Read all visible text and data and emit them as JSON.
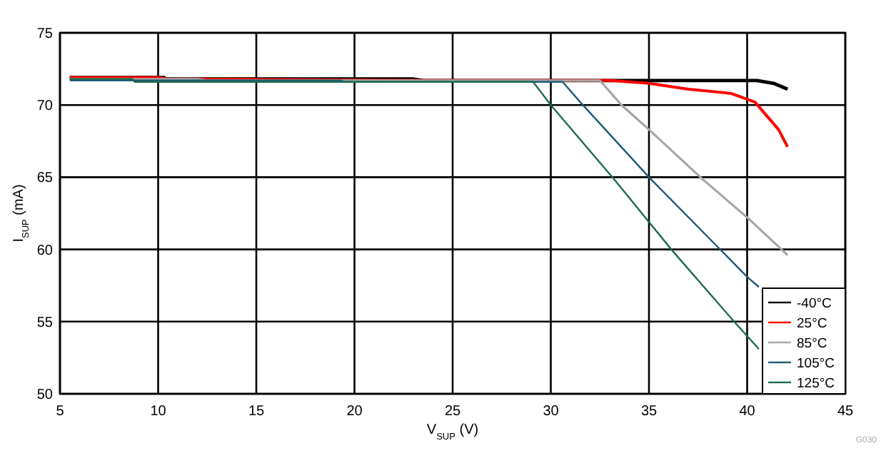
{
  "chart_data": {
    "type": "line",
    "xlabel": "V$_{SUP}$ (V)",
    "ylabel": "I$_{SUP}$ (mA)",
    "xlim": [
      5,
      45
    ],
    "ylim": [
      50,
      75
    ],
    "xticks": [
      5,
      10,
      15,
      20,
      25,
      30,
      35,
      40,
      45
    ],
    "yticks": [
      50,
      55,
      60,
      65,
      70,
      75
    ],
    "grid": true,
    "legend": "bottom right",
    "marker": "none",
    "line_style": "solid",
    "annotations": [
      "G030"
    ],
    "series": [
      {
        "name": "-40°C",
        "color": "#000000",
        "x": [
          5.5,
          10.3,
          10.4,
          23,
          23.5,
          33,
          38,
          40.5,
          41.35,
          42.06
        ],
        "values": [
          71.9,
          71.9,
          71.8,
          71.8,
          71.7,
          71.7,
          71.7,
          71.7,
          71.5,
          71.1
        ]
      },
      {
        "name": "25°C",
        "color": "#ff0000",
        "x": [
          5.5,
          10,
          10.5,
          24,
          33,
          35,
          37,
          39.2,
          40.4,
          41.6,
          42.06
        ],
        "values": [
          71.9,
          71.9,
          71.8,
          71.7,
          71.7,
          71.5,
          71.1,
          70.8,
          70.2,
          68.3,
          67.1
        ]
      },
      {
        "name": "85°C",
        "color": "#a6a6a6",
        "x": [
          5.5,
          12,
          12.5,
          32.5,
          33.6,
          35,
          37.7,
          40.1,
          42.06
        ],
        "values": [
          71.8,
          71.8,
          71.7,
          71.7,
          70,
          68.3,
          64.9,
          62.1,
          59.6
        ]
      },
      {
        "name": "105°C",
        "color": "#1f5a7a",
        "x": [
          5.5,
          19.3,
          19.5,
          30.6,
          31.5,
          35,
          40,
          40.6
        ],
        "values": [
          71.7,
          71.7,
          71.6,
          71.6,
          70.2,
          65,
          58.1,
          57.4
        ]
      },
      {
        "name": "125°C",
        "color": "#1e6b4a",
        "x": [
          5.5,
          8.7,
          8.8,
          29.1,
          30,
          33.2,
          35,
          36.2,
          39.4,
          40.6
        ],
        "values": [
          71.8,
          71.8,
          71.6,
          71.6,
          70,
          64.9,
          61.9,
          59.9,
          54.9,
          53.1
        ]
      }
    ]
  }
}
